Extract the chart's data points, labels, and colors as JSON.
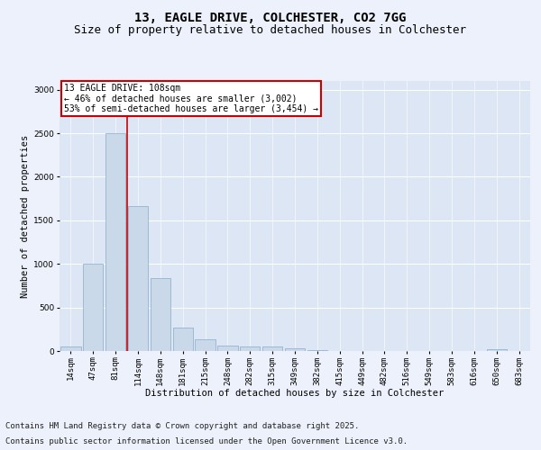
{
  "title_line1": "13, EAGLE DRIVE, COLCHESTER, CO2 7GG",
  "title_line2": "Size of property relative to detached houses in Colchester",
  "xlabel": "Distribution of detached houses by size in Colchester",
  "ylabel": "Number of detached properties",
  "categories": [
    "14sqm",
    "47sqm",
    "81sqm",
    "114sqm",
    "148sqm",
    "181sqm",
    "215sqm",
    "248sqm",
    "282sqm",
    "315sqm",
    "349sqm",
    "382sqm",
    "415sqm",
    "449sqm",
    "482sqm",
    "516sqm",
    "549sqm",
    "583sqm",
    "616sqm",
    "650sqm",
    "683sqm"
  ],
  "values": [
    50,
    1000,
    2500,
    1660,
    840,
    270,
    130,
    65,
    55,
    50,
    30,
    8,
    0,
    0,
    0,
    0,
    0,
    0,
    0,
    25,
    0
  ],
  "bar_color": "#c9d9ea",
  "bar_edge_color": "#8aaaca",
  "vline_x": 2.5,
  "vline_color": "#cc0000",
  "annotation_text": "13 EAGLE DRIVE: 108sqm\n← 46% of detached houses are smaller (3,002)\n53% of semi-detached houses are larger (3,454) →",
  "annotation_box_color": "#ffffff",
  "annotation_box_edge": "#cc0000",
  "ylim": [
    0,
    3100
  ],
  "yticks": [
    0,
    500,
    1000,
    1500,
    2000,
    2500,
    3000
  ],
  "background_color": "#edf1fb",
  "plot_bg_color": "#dce6f5",
  "grid_color": "#ffffff",
  "footer_line1": "Contains HM Land Registry data © Crown copyright and database right 2025.",
  "footer_line2": "Contains public sector information licensed under the Open Government Licence v3.0.",
  "title_fontsize": 10,
  "subtitle_fontsize": 9,
  "axis_label_fontsize": 7.5,
  "tick_fontsize": 6.5,
  "annotation_fontsize": 7,
  "footer_fontsize": 6.5
}
